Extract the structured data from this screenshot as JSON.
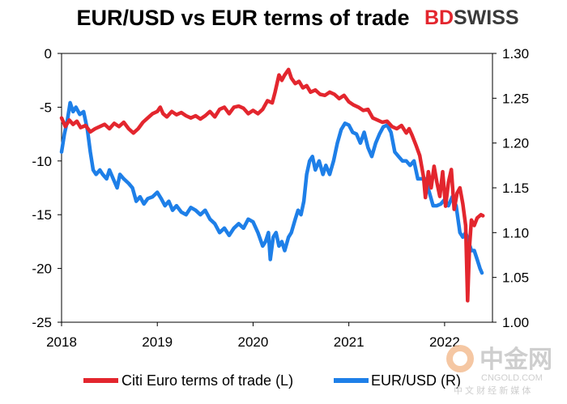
{
  "chart_data": {
    "type": "line",
    "title": "EUR/USD vs EUR terms of trade",
    "x_tick_labels": [
      "2018",
      "2019",
      "2020",
      "2021",
      "2022"
    ],
    "x_range": [
      2018.0,
      2022.5
    ],
    "left_axis": {
      "range": [
        -25,
        0
      ],
      "tick_labels": [
        "0",
        "-5",
        "-10",
        "-15",
        "-20",
        "-25"
      ]
    },
    "right_axis": {
      "range": [
        1.0,
        1.3
      ],
      "tick_labels": [
        "1.30",
        "1.25",
        "1.20",
        "1.15",
        "1.10",
        "1.05",
        "1.00"
      ]
    },
    "grid": false,
    "legend_position": "bottom",
    "series": [
      {
        "name": "Citi Euro terms of trade (L)",
        "color": "#e3262e",
        "axis": "left",
        "points": [
          [
            2018.0,
            -6.0
          ],
          [
            2018.04,
            -6.8
          ],
          [
            2018.08,
            -6.2
          ],
          [
            2018.12,
            -6.6
          ],
          [
            2018.16,
            -6.3
          ],
          [
            2018.2,
            -6.9
          ],
          [
            2018.25,
            -6.7
          ],
          [
            2018.3,
            -7.3
          ],
          [
            2018.35,
            -7.0
          ],
          [
            2018.4,
            -6.8
          ],
          [
            2018.45,
            -6.6
          ],
          [
            2018.5,
            -7.0
          ],
          [
            2018.55,
            -6.5
          ],
          [
            2018.6,
            -6.8
          ],
          [
            2018.65,
            -6.4
          ],
          [
            2018.7,
            -7.0
          ],
          [
            2018.75,
            -7.4
          ],
          [
            2018.8,
            -7.0
          ],
          [
            2018.85,
            -6.4
          ],
          [
            2018.9,
            -6.0
          ],
          [
            2018.95,
            -5.6
          ],
          [
            2019.0,
            -5.4
          ],
          [
            2019.03,
            -5.0
          ],
          [
            2019.06,
            -5.6
          ],
          [
            2019.1,
            -5.9
          ],
          [
            2019.15,
            -5.4
          ],
          [
            2019.2,
            -5.7
          ],
          [
            2019.25,
            -5.5
          ],
          [
            2019.3,
            -5.8
          ],
          [
            2019.35,
            -6.0
          ],
          [
            2019.4,
            -5.8
          ],
          [
            2019.45,
            -6.1
          ],
          [
            2019.5,
            -5.8
          ],
          [
            2019.55,
            -5.4
          ],
          [
            2019.6,
            -5.9
          ],
          [
            2019.65,
            -5.2
          ],
          [
            2019.7,
            -5.0
          ],
          [
            2019.75,
            -5.6
          ],
          [
            2019.8,
            -5.0
          ],
          [
            2019.85,
            -4.9
          ],
          [
            2019.9,
            -5.1
          ],
          [
            2019.95,
            -5.6
          ],
          [
            2020.0,
            -5.3
          ],
          [
            2020.05,
            -5.6
          ],
          [
            2020.1,
            -5.2
          ],
          [
            2020.15,
            -4.4
          ],
          [
            2020.2,
            -4.6
          ],
          [
            2020.23,
            -3.6
          ],
          [
            2020.27,
            -2.0
          ],
          [
            2020.3,
            -2.5
          ],
          [
            2020.33,
            -2.0
          ],
          [
            2020.37,
            -1.5
          ],
          [
            2020.4,
            -2.3
          ],
          [
            2020.44,
            -2.8
          ],
          [
            2020.48,
            -2.6
          ],
          [
            2020.52,
            -3.2
          ],
          [
            2020.56,
            -3.0
          ],
          [
            2020.6,
            -3.6
          ],
          [
            2020.65,
            -3.4
          ],
          [
            2020.7,
            -3.8
          ],
          [
            2020.75,
            -3.9
          ],
          [
            2020.8,
            -3.6
          ],
          [
            2020.85,
            -3.8
          ],
          [
            2020.9,
            -4.2
          ],
          [
            2020.95,
            -3.9
          ],
          [
            2021.0,
            -4.5
          ],
          [
            2021.05,
            -4.8
          ],
          [
            2021.1,
            -5.0
          ],
          [
            2021.15,
            -5.3
          ],
          [
            2021.2,
            -5.2
          ],
          [
            2021.25,
            -6.0
          ],
          [
            2021.3,
            -6.2
          ],
          [
            2021.35,
            -6.4
          ],
          [
            2021.4,
            -6.3
          ],
          [
            2021.45,
            -6.8
          ],
          [
            2021.5,
            -7.0
          ],
          [
            2021.55,
            -6.7
          ],
          [
            2021.6,
            -7.4
          ],
          [
            2021.63,
            -7.0
          ],
          [
            2021.66,
            -7.6
          ],
          [
            2021.7,
            -8.5
          ],
          [
            2021.74,
            -9.5
          ],
          [
            2021.78,
            -11.5
          ],
          [
            2021.8,
            -13.4
          ],
          [
            2021.83,
            -11.0
          ],
          [
            2021.86,
            -12.5
          ],
          [
            2021.89,
            -10.5
          ],
          [
            2021.92,
            -12.0
          ],
          [
            2021.95,
            -13.3
          ],
          [
            2021.98,
            -11.0
          ],
          [
            2022.01,
            -14.2
          ],
          [
            2022.04,
            -12.0
          ],
          [
            2022.07,
            -10.8
          ],
          [
            2022.1,
            -14.5
          ],
          [
            2022.13,
            -13.0
          ],
          [
            2022.16,
            -12.5
          ],
          [
            2022.19,
            -14.0
          ],
          [
            2022.22,
            -16.0
          ],
          [
            2022.24,
            -23.0
          ],
          [
            2022.26,
            -18.0
          ],
          [
            2022.28,
            -15.5
          ],
          [
            2022.31,
            -16.0
          ],
          [
            2022.34,
            -15.3
          ],
          [
            2022.38,
            -15.0
          ],
          [
            2022.4,
            -15.1
          ]
        ]
      },
      {
        "name": "EUR/USD (R)",
        "color": "#1e7fe8",
        "axis": "right",
        "points": [
          [
            2018.0,
            1.19
          ],
          [
            2018.03,
            1.21
          ],
          [
            2018.06,
            1.225
          ],
          [
            2018.09,
            1.245
          ],
          [
            2018.12,
            1.235
          ],
          [
            2018.15,
            1.24
          ],
          [
            2018.19,
            1.232
          ],
          [
            2018.23,
            1.235
          ],
          [
            2018.27,
            1.215
          ],
          [
            2018.3,
            1.19
          ],
          [
            2018.33,
            1.17
          ],
          [
            2018.36,
            1.165
          ],
          [
            2018.4,
            1.17
          ],
          [
            2018.43,
            1.165
          ],
          [
            2018.47,
            1.16
          ],
          [
            2018.5,
            1.17
          ],
          [
            2018.54,
            1.16
          ],
          [
            2018.58,
            1.15
          ],
          [
            2018.61,
            1.165
          ],
          [
            2018.65,
            1.16
          ],
          [
            2018.7,
            1.155
          ],
          [
            2018.74,
            1.15
          ],
          [
            2018.78,
            1.135
          ],
          [
            2018.82,
            1.14
          ],
          [
            2018.86,
            1.132
          ],
          [
            2018.9,
            1.138
          ],
          [
            2018.95,
            1.14
          ],
          [
            2019.0,
            1.145
          ],
          [
            2019.04,
            1.138
          ],
          [
            2019.08,
            1.13
          ],
          [
            2019.12,
            1.135
          ],
          [
            2019.16,
            1.125
          ],
          [
            2019.2,
            1.13
          ],
          [
            2019.25,
            1.123
          ],
          [
            2019.3,
            1.12
          ],
          [
            2019.35,
            1.128
          ],
          [
            2019.4,
            1.125
          ],
          [
            2019.45,
            1.12
          ],
          [
            2019.5,
            1.125
          ],
          [
            2019.55,
            1.115
          ],
          [
            2019.6,
            1.11
          ],
          [
            2019.65,
            1.1
          ],
          [
            2019.7,
            1.105
          ],
          [
            2019.75,
            1.097
          ],
          [
            2019.8,
            1.105
          ],
          [
            2019.85,
            1.11
          ],
          [
            2019.9,
            1.105
          ],
          [
            2019.95,
            1.115
          ],
          [
            2020.0,
            1.112
          ],
          [
            2020.05,
            1.1
          ],
          [
            2020.1,
            1.085
          ],
          [
            2020.13,
            1.09
          ],
          [
            2020.16,
            1.1
          ],
          [
            2020.18,
            1.07
          ],
          [
            2020.21,
            1.095
          ],
          [
            2020.24,
            1.1
          ],
          [
            2020.27,
            1.085
          ],
          [
            2020.3,
            1.09
          ],
          [
            2020.33,
            1.08
          ],
          [
            2020.37,
            1.095
          ],
          [
            2020.4,
            1.1
          ],
          [
            2020.44,
            1.115
          ],
          [
            2020.47,
            1.125
          ],
          [
            2020.5,
            1.12
          ],
          [
            2020.53,
            1.135
          ],
          [
            2020.56,
            1.165
          ],
          [
            2020.59,
            1.18
          ],
          [
            2020.62,
            1.185
          ],
          [
            2020.65,
            1.17
          ],
          [
            2020.69,
            1.18
          ],
          [
            2020.73,
            1.165
          ],
          [
            2020.76,
            1.175
          ],
          [
            2020.8,
            1.165
          ],
          [
            2020.84,
            1.18
          ],
          [
            2020.88,
            1.2
          ],
          [
            2020.92,
            1.215
          ],
          [
            2020.96,
            1.222
          ],
          [
            2021.0,
            1.22
          ],
          [
            2021.04,
            1.212
          ],
          [
            2021.08,
            1.21
          ],
          [
            2021.12,
            1.2
          ],
          [
            2021.16,
            1.212
          ],
          [
            2021.2,
            1.195
          ],
          [
            2021.24,
            1.185
          ],
          [
            2021.28,
            1.2
          ],
          [
            2021.32,
            1.21
          ],
          [
            2021.36,
            1.218
          ],
          [
            2021.4,
            1.22
          ],
          [
            2021.44,
            1.212
          ],
          [
            2021.48,
            1.19
          ],
          [
            2021.52,
            1.185
          ],
          [
            2021.56,
            1.18
          ],
          [
            2021.6,
            1.18
          ],
          [
            2021.64,
            1.175
          ],
          [
            2021.68,
            1.18
          ],
          [
            2021.72,
            1.16
          ],
          [
            2021.76,
            1.16
          ],
          [
            2021.8,
            1.16
          ],
          [
            2021.84,
            1.145
          ],
          [
            2021.88,
            1.13
          ],
          [
            2021.92,
            1.13
          ],
          [
            2021.96,
            1.132
          ],
          [
            2022.0,
            1.137
          ],
          [
            2022.04,
            1.13
          ],
          [
            2022.08,
            1.14
          ],
          [
            2022.12,
            1.13
          ],
          [
            2022.16,
            1.1
          ],
          [
            2022.19,
            1.095
          ],
          [
            2022.22,
            1.1
          ],
          [
            2022.25,
            1.09
          ],
          [
            2022.28,
            1.08
          ],
          [
            2022.31,
            1.08
          ],
          [
            2022.34,
            1.07
          ],
          [
            2022.37,
            1.06
          ],
          [
            2022.39,
            1.055
          ]
        ]
      }
    ]
  },
  "logo": {
    "part1": "BD",
    "part2": "SWISS"
  },
  "watermark": {
    "main": "中金网",
    "sub1": "CNGOLD.COM",
    "sub2": "中 文 财 经 新 媒 体"
  }
}
